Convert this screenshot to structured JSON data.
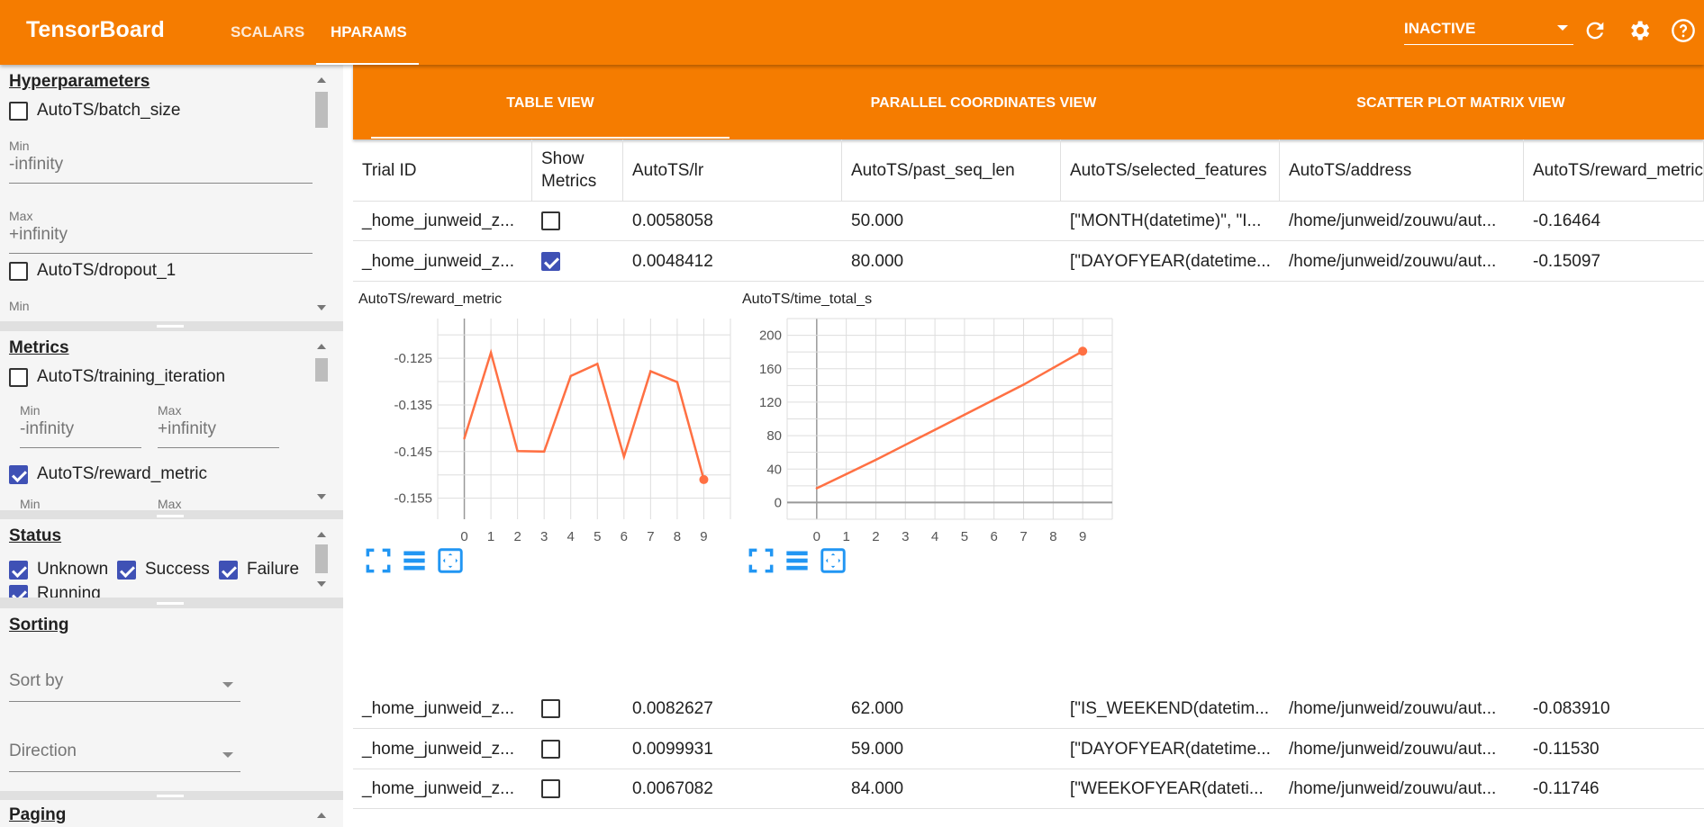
{
  "header": {
    "brand": "TensorBoard",
    "nav": [
      {
        "label": "SCALARS",
        "active": false
      },
      {
        "label": "HPARAMS",
        "active": true
      }
    ],
    "run_select": "INACTIVE",
    "icons": [
      "refresh-icon",
      "settings-icon",
      "help-icon"
    ]
  },
  "sidebar": {
    "hyperparameters": {
      "title": "Hyperparameters",
      "items": [
        {
          "label": "AutoTS/batch_size",
          "checked": false,
          "min_label": "Min",
          "min": "-infinity",
          "max_label": "Max",
          "max": "+infinity"
        },
        {
          "label": "AutoTS/dropout_1",
          "checked": false,
          "min_label": "Min"
        }
      ]
    },
    "metrics": {
      "title": "Metrics",
      "items": [
        {
          "label": "AutoTS/training_iteration",
          "checked": false,
          "min_label": "Min",
          "min": "-infinity",
          "max_label": "Max",
          "max": "+infinity"
        },
        {
          "label": "AutoTS/reward_metric",
          "checked": true,
          "min_label": "Min",
          "max_label": "Max"
        }
      ]
    },
    "status": {
      "title": "Status",
      "items": [
        {
          "label": "Unknown",
          "checked": true
        },
        {
          "label": "Success",
          "checked": true
        },
        {
          "label": "Failure",
          "checked": true
        },
        {
          "label": "Running",
          "checked": true
        }
      ]
    },
    "sorting": {
      "title": "Sorting",
      "sort_by": "Sort by",
      "direction": "Direction"
    },
    "paging": {
      "title": "Paging"
    }
  },
  "view_tabs": [
    {
      "label": "TABLE VIEW",
      "active": true
    },
    {
      "label": "PARALLEL COORDINATES VIEW",
      "active": false
    },
    {
      "label": "SCATTER PLOT MATRIX VIEW",
      "active": false
    }
  ],
  "table": {
    "columns": [
      "Trial ID",
      "Show Metrics",
      "AutoTS/lr",
      "AutoTS/past_seq_len",
      "AutoTS/selected_features",
      "AutoTS/address",
      "AutoTS/reward_metric"
    ],
    "rows_top": [
      {
        "trial": "_home_junweid_z...",
        "show": false,
        "lr": "0.0058058",
        "past_seq_len": "50.000",
        "features": "[\"MONTH(datetime)\", \"I...",
        "address": "/home/junweid/zouwu/aut...",
        "reward": "-0.16464"
      },
      {
        "trial": "_home_junweid_z...",
        "show": true,
        "lr": "0.0048412",
        "past_seq_len": "80.000",
        "features": "[\"DAYOFYEAR(datetime...",
        "address": "/home/junweid/zouwu/aut...",
        "reward": "-0.15097"
      }
    ],
    "rows_bottom": [
      {
        "trial": "_home_junweid_z...",
        "show": false,
        "lr": "0.0082627",
        "past_seq_len": "62.000",
        "features": "[\"IS_WEEKEND(datetim...",
        "address": "/home/junweid/zouwu/aut...",
        "reward": "-0.083910"
      },
      {
        "trial": "_home_junweid_z...",
        "show": false,
        "lr": "0.0099931",
        "past_seq_len": "59.000",
        "features": "[\"DAYOFYEAR(datetime...",
        "address": "/home/junweid/zouwu/aut...",
        "reward": "-0.11530"
      },
      {
        "trial": "_home_junweid_z...",
        "show": false,
        "lr": "0.0067082",
        "past_seq_len": "84.000",
        "features": "[\"WEEKOFYEAR(dateti...",
        "address": "/home/junweid/zouwu/aut...",
        "reward": "-0.11746"
      }
    ]
  },
  "colors": {
    "accent": "#f57c00",
    "checkbox": "#3f51b5",
    "series": "#ff7043",
    "chart_icons": "#2196f3"
  },
  "chart_data": [
    {
      "type": "line",
      "title": "AutoTS/reward_metric",
      "x": [
        0,
        1,
        2,
        3,
        4,
        5,
        6,
        7,
        8,
        9
      ],
      "y": [
        -0.1422,
        -0.1238,
        -0.1449,
        -0.145,
        -0.1288,
        -0.1262,
        -0.1461,
        -0.1278,
        -0.1301,
        -0.151
      ],
      "xticks": [
        "0",
        "1",
        "2",
        "3",
        "4",
        "5",
        "6",
        "7",
        "8",
        "9"
      ],
      "yticks": [
        "-0.125",
        "-0.135",
        "-0.145",
        "-0.155"
      ],
      "xlim": [
        -1,
        10
      ],
      "ylim": [
        -0.1595,
        -0.1165
      ],
      "grid": true
    },
    {
      "type": "line",
      "title": "AutoTS/time_total_s",
      "x": [
        0,
        1,
        2,
        3,
        4,
        5,
        6,
        7,
        8,
        9
      ],
      "y": [
        17,
        34,
        51,
        69,
        87,
        105,
        123,
        141,
        161,
        181
      ],
      "xticks": [
        "0",
        "1",
        "2",
        "3",
        "4",
        "5",
        "6",
        "7",
        "8",
        "9"
      ],
      "yticks": [
        "0",
        "40",
        "80",
        "120",
        "160",
        "200"
      ],
      "xlim": [
        -1,
        10
      ],
      "ylim": [
        -20,
        220
      ],
      "grid": true
    }
  ]
}
